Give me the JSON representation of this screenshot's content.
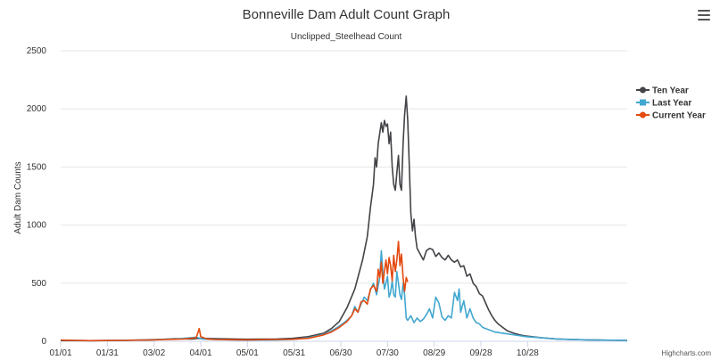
{
  "chart_data": {
    "type": "line",
    "title": "Bonneville Dam Adult Count Graph",
    "subtitle": "Unclipped_Steelhead Count",
    "ylabel": "Adult Dam Counts",
    "xlabel": "",
    "ylim": [
      0,
      2500
    ],
    "xlim": [
      1,
      365
    ],
    "yticks": [
      0,
      500,
      1000,
      1500,
      2000,
      2500
    ],
    "xticks": [
      {
        "day": 1,
        "label": "01/01"
      },
      {
        "day": 31,
        "label": "01/31"
      },
      {
        "day": 61,
        "label": "03/02"
      },
      {
        "day": 91,
        "label": "04/01"
      },
      {
        "day": 121,
        "label": "05/01"
      },
      {
        "day": 151,
        "label": "05/31"
      },
      {
        "day": 181,
        "label": "06/30"
      },
      {
        "day": 211,
        "label": "07/30"
      },
      {
        "day": 241,
        "label": "08/29"
      },
      {
        "day": 271,
        "label": "09/28"
      },
      {
        "day": 301,
        "label": "10/28"
      }
    ],
    "series": [
      {
        "name": "Ten Year",
        "color": "#434348",
        "marker": "circle",
        "points": [
          [
            1,
            6
          ],
          [
            20,
            5
          ],
          [
            40,
            8
          ],
          [
            60,
            12
          ],
          [
            75,
            22
          ],
          [
            85,
            20
          ],
          [
            90,
            25
          ],
          [
            100,
            22
          ],
          [
            120,
            18
          ],
          [
            140,
            20
          ],
          [
            150,
            25
          ],
          [
            160,
            40
          ],
          [
            170,
            70
          ],
          [
            175,
            110
          ],
          [
            180,
            170
          ],
          [
            185,
            290
          ],
          [
            190,
            450
          ],
          [
            195,
            700
          ],
          [
            198,
            900
          ],
          [
            200,
            1150
          ],
          [
            202,
            1350
          ],
          [
            203,
            1580
          ],
          [
            204,
            1500
          ],
          [
            205,
            1700
          ],
          [
            207,
            1880
          ],
          [
            208,
            1800
          ],
          [
            209,
            1900
          ],
          [
            210,
            1850
          ],
          [
            211,
            1870
          ],
          [
            212,
            1700
          ],
          [
            213,
            1800
          ],
          [
            214,
            1500
          ],
          [
            215,
            1350
          ],
          [
            216,
            1300
          ],
          [
            217,
            1450
          ],
          [
            218,
            1600
          ],
          [
            219,
            1350
          ],
          [
            220,
            1300
          ],
          [
            221,
            1700
          ],
          [
            222,
            1950
          ],
          [
            223,
            2110
          ],
          [
            224,
            1900
          ],
          [
            225,
            1500
          ],
          [
            226,
            1100
          ],
          [
            227,
            950
          ],
          [
            228,
            1050
          ],
          [
            229,
            900
          ],
          [
            230,
            800
          ],
          [
            232,
            750
          ],
          [
            234,
            700
          ],
          [
            236,
            780
          ],
          [
            238,
            800
          ],
          [
            240,
            790
          ],
          [
            242,
            730
          ],
          [
            244,
            760
          ],
          [
            246,
            720
          ],
          [
            248,
            700
          ],
          [
            250,
            740
          ],
          [
            252,
            700
          ],
          [
            254,
            680
          ],
          [
            256,
            700
          ],
          [
            258,
            640
          ],
          [
            260,
            650
          ],
          [
            262,
            560
          ],
          [
            264,
            580
          ],
          [
            266,
            500
          ],
          [
            268,
            470
          ],
          [
            270,
            410
          ],
          [
            272,
            390
          ],
          [
            274,
            330
          ],
          [
            276,
            270
          ],
          [
            278,
            220
          ],
          [
            280,
            180
          ],
          [
            282,
            150
          ],
          [
            285,
            120
          ],
          [
            288,
            90
          ],
          [
            292,
            70
          ],
          [
            296,
            55
          ],
          [
            300,
            45
          ],
          [
            310,
            30
          ],
          [
            320,
            20
          ],
          [
            330,
            15
          ],
          [
            340,
            12
          ],
          [
            350,
            10
          ],
          [
            365,
            8
          ]
        ]
      },
      {
        "name": "Last Year",
        "color": "#42a7d0",
        "marker": "square",
        "points": [
          [
            1,
            10
          ],
          [
            20,
            5
          ],
          [
            40,
            8
          ],
          [
            60,
            15
          ],
          [
            75,
            20
          ],
          [
            88,
            35
          ],
          [
            92,
            20
          ],
          [
            100,
            15
          ],
          [
            120,
            10
          ],
          [
            140,
            12
          ],
          [
            150,
            15
          ],
          [
            160,
            30
          ],
          [
            165,
            45
          ],
          [
            170,
            60
          ],
          [
            175,
            90
          ],
          [
            180,
            130
          ],
          [
            185,
            180
          ],
          [
            188,
            220
          ],
          [
            190,
            300
          ],
          [
            192,
            250
          ],
          [
            194,
            320
          ],
          [
            196,
            380
          ],
          [
            198,
            350
          ],
          [
            200,
            440
          ],
          [
            202,
            500
          ],
          [
            204,
            400
          ],
          [
            206,
            550
          ],
          [
            207,
            780
          ],
          [
            208,
            600
          ],
          [
            209,
            450
          ],
          [
            210,
            500
          ],
          [
            211,
            560
          ],
          [
            212,
            380
          ],
          [
            213,
            420
          ],
          [
            214,
            520
          ],
          [
            215,
            400
          ],
          [
            216,
            380
          ],
          [
            217,
            600
          ],
          [
            218,
            500
          ],
          [
            219,
            400
          ],
          [
            220,
            360
          ],
          [
            221,
            500
          ],
          [
            222,
            400
          ],
          [
            223,
            200
          ],
          [
            224,
            180
          ],
          [
            226,
            220
          ],
          [
            228,
            160
          ],
          [
            230,
            200
          ],
          [
            232,
            170
          ],
          [
            234,
            190
          ],
          [
            236,
            230
          ],
          [
            238,
            280
          ],
          [
            240,
            200
          ],
          [
            242,
            380
          ],
          [
            244,
            330
          ],
          [
            246,
            210
          ],
          [
            248,
            180
          ],
          [
            250,
            220
          ],
          [
            252,
            200
          ],
          [
            254,
            420
          ],
          [
            256,
            350
          ],
          [
            257,
            450
          ],
          [
            258,
            250
          ],
          [
            260,
            350
          ],
          [
            262,
            200
          ],
          [
            264,
            280
          ],
          [
            266,
            200
          ],
          [
            268,
            160
          ],
          [
            270,
            150
          ],
          [
            272,
            120
          ],
          [
            276,
            100
          ],
          [
            280,
            80
          ],
          [
            285,
            70
          ],
          [
            290,
            60
          ],
          [
            295,
            50
          ],
          [
            300,
            40
          ],
          [
            310,
            30
          ],
          [
            320,
            20
          ],
          [
            330,
            15
          ],
          [
            340,
            12
          ],
          [
            350,
            10
          ],
          [
            365,
            8
          ]
        ]
      },
      {
        "name": "Current Year",
        "color": "#e34a10",
        "marker": "circle",
        "points": [
          [
            1,
            10
          ],
          [
            20,
            5
          ],
          [
            40,
            8
          ],
          [
            60,
            12
          ],
          [
            80,
            20
          ],
          [
            88,
            30
          ],
          [
            90,
            110
          ],
          [
            91,
            40
          ],
          [
            95,
            20
          ],
          [
            100,
            15
          ],
          [
            120,
            12
          ],
          [
            140,
            15
          ],
          [
            150,
            18
          ],
          [
            160,
            25
          ],
          [
            165,
            40
          ],
          [
            170,
            55
          ],
          [
            175,
            80
          ],
          [
            180,
            120
          ],
          [
            185,
            170
          ],
          [
            188,
            220
          ],
          [
            190,
            280
          ],
          [
            192,
            250
          ],
          [
            194,
            340
          ],
          [
            196,
            350
          ],
          [
            198,
            320
          ],
          [
            200,
            450
          ],
          [
            202,
            480
          ],
          [
            204,
            430
          ],
          [
            205,
            620
          ],
          [
            206,
            550
          ],
          [
            207,
            680
          ],
          [
            208,
            500
          ],
          [
            209,
            600
          ],
          [
            210,
            700
          ],
          [
            211,
            580
          ],
          [
            212,
            720
          ],
          [
            213,
            650
          ],
          [
            214,
            520
          ],
          [
            215,
            740
          ],
          [
            216,
            600
          ],
          [
            217,
            700
          ],
          [
            218,
            860
          ],
          [
            219,
            650
          ],
          [
            220,
            750
          ],
          [
            221,
            550
          ],
          [
            222,
            430
          ],
          [
            223,
            550
          ],
          [
            224,
            510
          ]
        ]
      }
    ],
    "legend": "right"
  },
  "credits": "Highcharts.com",
  "menu_icon": "hamburger-menu-icon"
}
